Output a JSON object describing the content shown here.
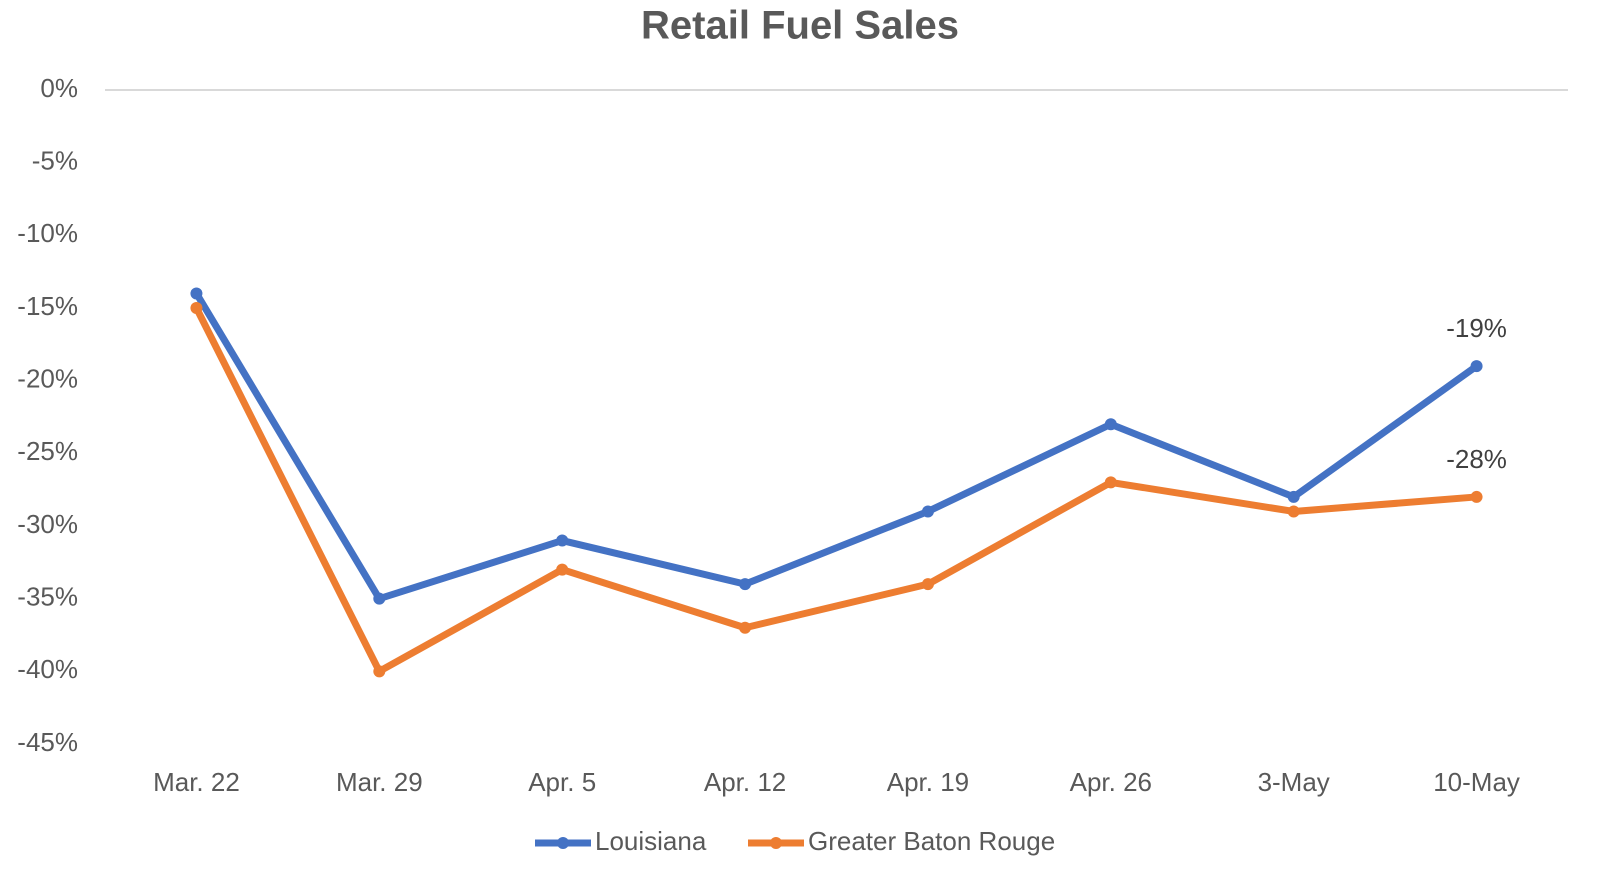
{
  "chart_data": {
    "type": "line",
    "title": "Retail Fuel Sales",
    "categories": [
      "Mar. 22",
      "Mar. 29",
      "Apr. 5",
      "Apr. 12",
      "Apr. 19",
      "Apr. 26",
      "3-May",
      "10-May"
    ],
    "series": [
      {
        "name": "Louisiana",
        "color": "#4472c4",
        "values": [
          -14,
          -35,
          -31,
          -34,
          -29,
          -23,
          -28,
          -19
        ],
        "value_labels": [
          null,
          null,
          null,
          null,
          null,
          null,
          null,
          "-19%"
        ]
      },
      {
        "name": "Greater Baton Rouge",
        "color": "#ed7d31",
        "values": [
          -15,
          -40,
          -33,
          -37,
          -34,
          -27,
          -29,
          -28
        ],
        "value_labels": [
          null,
          null,
          null,
          null,
          null,
          null,
          null,
          "-28%"
        ]
      }
    ],
    "ylim": [
      -45,
      0
    ],
    "yticks": [
      {
        "value": 0,
        "label": "0%"
      },
      {
        "value": -5,
        "label": "-5%"
      },
      {
        "value": -10,
        "label": "-10%"
      },
      {
        "value": -15,
        "label": "-15%"
      },
      {
        "value": -20,
        "label": "-20%"
      },
      {
        "value": -25,
        "label": "-25%"
      },
      {
        "value": -30,
        "label": "-30%"
      },
      {
        "value": -35,
        "label": "-35%"
      },
      {
        "value": -40,
        "label": "-40%"
      },
      {
        "value": -45,
        "label": "-45%"
      }
    ],
    "grid": false,
    "legend": "bottom"
  }
}
